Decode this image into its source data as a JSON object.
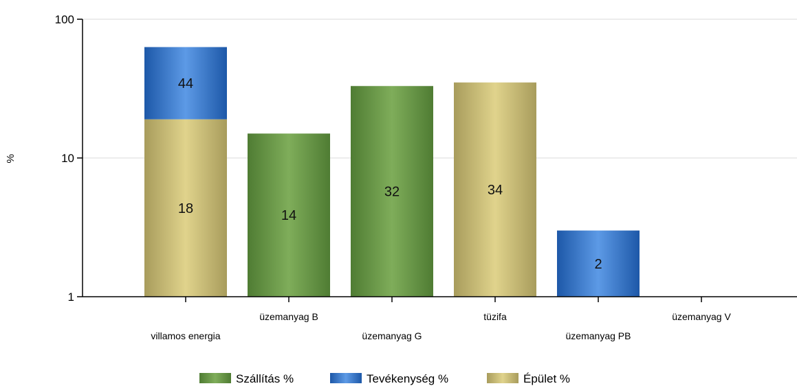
{
  "chart_data": {
    "type": "bar",
    "stacked": true,
    "y_scale": "log",
    "ylabel": "%",
    "xlabel": "",
    "title": "",
    "ylim": [
      1,
      100
    ],
    "y_ticks": [
      "1",
      "10",
      "100"
    ],
    "grid": "horizontal at major ticks",
    "legend_position": "bottom",
    "categories": [
      "villamos energia",
      "üzemanyag B",
      "üzemanyag G",
      "tüzifa",
      "üzemanyag PB",
      "üzemanyag V"
    ],
    "series": [
      {
        "name": "Szállítás %",
        "color": "#6a9a47",
        "values": [
          null,
          14,
          32,
          null,
          null,
          null
        ]
      },
      {
        "name": "Tevékenység %",
        "color": "#3a78c9",
        "values": [
          44,
          null,
          null,
          null,
          2,
          null
        ]
      },
      {
        "name": "Épület %",
        "color": "#c8bb76",
        "values": [
          18,
          null,
          null,
          34,
          null,
          null
        ]
      }
    ]
  }
}
